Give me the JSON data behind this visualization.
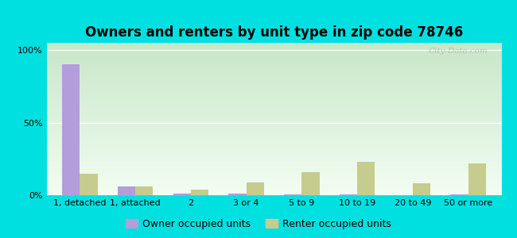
{
  "title": "Owners and renters by unit type in zip code 78746",
  "categories": [
    "1, detached",
    "1, attached",
    "2",
    "3 or 4",
    "5 to 9",
    "10 to 19",
    "20 to 49",
    "50 or more"
  ],
  "owner_values": [
    90,
    6,
    1,
    1,
    0.5,
    0.5,
    0,
    0.5
  ],
  "renter_values": [
    15,
    6,
    4,
    9,
    16,
    23,
    8,
    22
  ],
  "owner_color": "#b39ddb",
  "renter_color": "#c5cc8e",
  "background_outer": "#00e0e0",
  "background_inner_top": "#cce8cc",
  "background_inner_bottom": "#f0faf0",
  "yticks": [
    0,
    50,
    100
  ],
  "ylim": [
    0,
    105
  ],
  "legend_owner": "Owner occupied units",
  "legend_renter": "Renter occupied units",
  "bar_width": 0.32,
  "title_fontsize": 12,
  "axis_fontsize": 8,
  "legend_fontsize": 9,
  "watermark": "City-Data.com"
}
